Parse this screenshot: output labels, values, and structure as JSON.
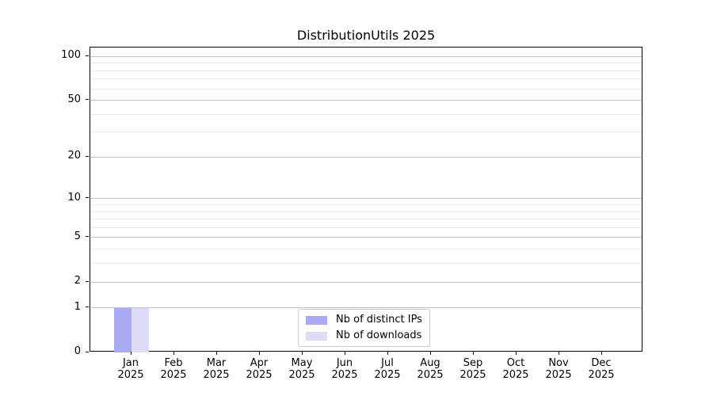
{
  "chart_data": {
    "type": "bar",
    "title": "DistributionUtils 2025",
    "categories": [
      "Jan",
      "Feb",
      "Mar",
      "Apr",
      "May",
      "Jun",
      "Jul",
      "Aug",
      "Sep",
      "Oct",
      "Nov",
      "Dec"
    ],
    "category_year": "2025",
    "series": [
      {
        "name": "Nb of distinct IPs",
        "color": "#a9a9f1",
        "values": [
          1,
          0,
          0,
          0,
          0,
          0,
          0,
          0,
          0,
          0,
          0,
          0
        ]
      },
      {
        "name": "Nb of downloads",
        "color": "#dcdcf7",
        "values": [
          1,
          0,
          0,
          0,
          0,
          0,
          0,
          0,
          0,
          0,
          0,
          0
        ]
      }
    ],
    "xlabel": "",
    "ylabel": "",
    "yscale": "log1p",
    "ylim": [
      0,
      115
    ],
    "yticks_major": [
      0,
      1,
      2,
      5,
      10,
      20,
      50,
      100
    ],
    "yticks_minor": [
      3,
      4,
      6,
      7,
      8,
      9,
      30,
      40,
      60,
      70,
      80,
      90
    ],
    "grid": true,
    "legend_position": "lower center",
    "colors": {
      "major_grid": "#c3c3c3",
      "minor_grid": "#ebebeb",
      "spine": "#000000",
      "text": "#000000",
      "background": "#ffffff"
    }
  }
}
